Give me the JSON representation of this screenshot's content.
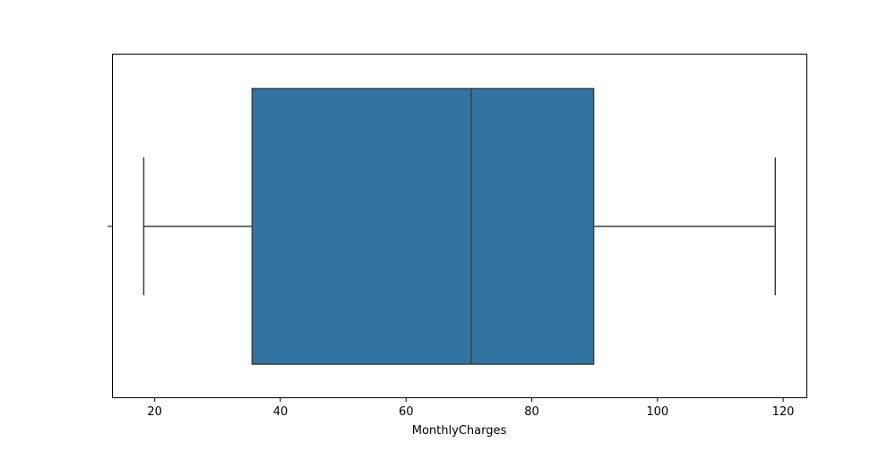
{
  "chart_data": {
    "type": "box",
    "orientation": "horizontal",
    "title": "",
    "xlabel": "MonthlyCharges",
    "ylabel": "",
    "xlim": [
      13.2,
      123.7
    ],
    "xticks": [
      20,
      40,
      60,
      80,
      100,
      120
    ],
    "xtick_labels": [
      "20",
      "40",
      "60",
      "80",
      "100",
      "120"
    ],
    "grid": false,
    "legend": "none",
    "series": [
      {
        "whisker_low": 18.25,
        "q1": 35.5,
        "median": 70.35,
        "q3": 89.85,
        "whisker_high": 118.75
      }
    ],
    "colors": {
      "box_fill": "#3274a1",
      "line": "#3f3f3f",
      "axes": "#000000"
    }
  }
}
